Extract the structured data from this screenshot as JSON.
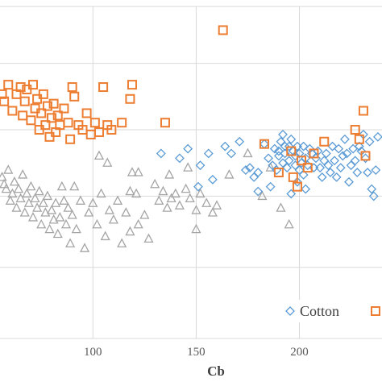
{
  "chart_data": {
    "type": "scatter",
    "xlabel": "Cb",
    "ylabel": "",
    "xlim": [
      55,
      240
    ],
    "ylim": [
      40,
      180
    ],
    "x_ticks": [
      100,
      150,
      200
    ],
    "y_grid": [
      40,
      70,
      100,
      128,
      156,
      180
    ],
    "grid": "horizontal and vertical",
    "legend_placement": "bottom-right",
    "colors": {
      "cotton": "#5b9bd5",
      "orange": "#ed7d31",
      "gray": "#a5a5a5"
    },
    "series": [
      {
        "name": "Cotton",
        "marker": "diamond",
        "color": "#5b9bd5",
        "points": [
          [
            142,
            116
          ],
          [
            146,
            120
          ],
          [
            152,
            113
          ],
          [
            156,
            118
          ],
          [
            158,
            107
          ],
          [
            164,
            121
          ],
          [
            167,
            118
          ],
          [
            174,
            111
          ],
          [
            176,
            112
          ],
          [
            178,
            108
          ],
          [
            180,
            110
          ],
          [
            183,
            122
          ],
          [
            185,
            116
          ],
          [
            187,
            113
          ],
          [
            188,
            120
          ],
          [
            189,
            111
          ],
          [
            190,
            119
          ],
          [
            190,
            117
          ],
          [
            191,
            123
          ],
          [
            192,
            114
          ],
          [
            192,
            126
          ],
          [
            193,
            121
          ],
          [
            193,
            118
          ],
          [
            194,
            112
          ],
          [
            195,
            121
          ],
          [
            195,
            115
          ],
          [
            196,
            124
          ],
          [
            197,
            119
          ],
          [
            198,
            117
          ],
          [
            198,
            113
          ],
          [
            199,
            121
          ],
          [
            200,
            111
          ],
          [
            200,
            118
          ],
          [
            201,
            114
          ],
          [
            202,
            121
          ],
          [
            202,
            109
          ],
          [
            203,
            116
          ],
          [
            204,
            113
          ],
          [
            205,
            120
          ],
          [
            206,
            118
          ],
          [
            207,
            112
          ],
          [
            208,
            116
          ],
          [
            209,
            119
          ],
          [
            210,
            112
          ],
          [
            211,
            108
          ],
          [
            212,
            115
          ],
          [
            213,
            118
          ],
          [
            214,
            113
          ],
          [
            215,
            110
          ],
          [
            216,
            121
          ],
          [
            217,
            115
          ],
          [
            218,
            108
          ],
          [
            219,
            120
          ],
          [
            220,
            112
          ],
          [
            221,
            117
          ],
          [
            222,
            124
          ],
          [
            223,
            118
          ],
          [
            224,
            106
          ],
          [
            225,
            113
          ],
          [
            226,
            120
          ],
          [
            227,
            115
          ],
          [
            228,
            110
          ],
          [
            229,
            121
          ],
          [
            230,
            119
          ],
          [
            231,
            126
          ],
          [
            232,
            116
          ],
          [
            233,
            110
          ],
          [
            234,
            123
          ],
          [
            235,
            103
          ],
          [
            236,
            100
          ],
          [
            237,
            111
          ],
          [
            238,
            125
          ],
          [
            199,
            106
          ],
          [
            196,
            101
          ],
          [
            203,
            103
          ],
          [
            180,
            102
          ],
          [
            151,
            104
          ],
          [
            133,
            118
          ],
          [
            171,
            123
          ],
          [
            186,
            104
          ]
        ]
      },
      {
        "name": "",
        "marker": "square",
        "color": "#ed7d31",
        "points": [
          [
            56,
            143
          ],
          [
            57,
            140
          ],
          [
            59,
            147
          ],
          [
            61,
            136
          ],
          [
            63,
            143
          ],
          [
            65,
            146
          ],
          [
            66,
            134
          ],
          [
            67,
            140
          ],
          [
            68,
            145
          ],
          [
            70,
            132
          ],
          [
            71,
            147
          ],
          [
            72,
            137
          ],
          [
            73,
            141
          ],
          [
            74,
            128
          ],
          [
            75,
            135
          ],
          [
            76,
            143
          ],
          [
            77,
            130
          ],
          [
            78,
            138
          ],
          [
            79,
            125
          ],
          [
            80,
            133
          ],
          [
            81,
            139
          ],
          [
            82,
            127
          ],
          [
            83,
            134
          ],
          [
            84,
            130
          ],
          [
            86,
            137
          ],
          [
            88,
            131
          ],
          [
            89,
            124
          ],
          [
            90,
            146
          ],
          [
            91,
            142
          ],
          [
            93,
            130
          ],
          [
            95,
            128
          ],
          [
            97,
            135
          ],
          [
            99,
            126
          ],
          [
            101,
            131
          ],
          [
            103,
            127
          ],
          [
            105,
            146
          ],
          [
            107,
            130
          ],
          [
            109,
            128
          ],
          [
            114,
            131
          ],
          [
            118,
            141
          ],
          [
            119,
            147
          ],
          [
            135,
            131
          ],
          [
            163,
            170
          ],
          [
            183,
            122
          ],
          [
            196,
            119
          ],
          [
            190,
            110
          ],
          [
            197,
            108
          ],
          [
            199,
            104
          ],
          [
            201,
            115
          ],
          [
            204,
            112
          ],
          [
            207,
            118
          ],
          [
            212,
            123
          ],
          [
            227,
            128
          ],
          [
            229,
            124
          ],
          [
            232,
            117
          ],
          [
            231,
            136
          ]
        ]
      },
      {
        "name": "",
        "marker": "triangle",
        "color": "#a5a5a5",
        "points": [
          [
            56,
            108
          ],
          [
            57,
            105
          ],
          [
            58,
            103
          ],
          [
            59,
            111
          ],
          [
            60,
            98
          ],
          [
            61,
            101
          ],
          [
            62,
            106
          ],
          [
            63,
            95
          ],
          [
            64,
            103
          ],
          [
            65,
            99
          ],
          [
            66,
            109
          ],
          [
            67,
            93
          ],
          [
            68,
            101
          ],
          [
            69,
            97
          ],
          [
            70,
            104
          ],
          [
            71,
            91
          ],
          [
            72,
            99
          ],
          [
            73,
            95
          ],
          [
            74,
            102
          ],
          [
            75,
            88
          ],
          [
            76,
            97
          ],
          [
            77,
            93
          ],
          [
            78,
            100
          ],
          [
            79,
            86
          ],
          [
            80,
            94
          ],
          [
            81,
            90
          ],
          [
            82,
            97
          ],
          [
            83,
            84
          ],
          [
            84,
            91
          ],
          [
            85,
            104
          ],
          [
            86,
            98
          ],
          [
            87,
            88
          ],
          [
            88,
            95
          ],
          [
            89,
            80
          ],
          [
            90,
            92
          ],
          [
            91,
            104
          ],
          [
            92,
            86
          ],
          [
            94,
            98
          ],
          [
            96,
            78
          ],
          [
            98,
            93
          ],
          [
            100,
            97
          ],
          [
            102,
            88
          ],
          [
            104,
            101
          ],
          [
            106,
            83
          ],
          [
            108,
            94
          ],
          [
            110,
            90
          ],
          [
            112,
            98
          ],
          [
            114,
            80
          ],
          [
            116,
            93
          ],
          [
            118,
            85
          ],
          [
            119,
            110
          ],
          [
            121,
            101
          ],
          [
            122,
            88
          ],
          [
            125,
            92
          ],
          [
            127,
            82
          ],
          [
            130,
            105
          ],
          [
            132,
            98
          ],
          [
            134,
            102
          ],
          [
            136,
            95
          ],
          [
            138,
            99
          ],
          [
            140,
            101
          ],
          [
            142,
            96
          ],
          [
            145,
            103
          ],
          [
            147,
            99
          ],
          [
            150,
            94
          ],
          [
            152,
            101
          ],
          [
            155,
            97
          ],
          [
            158,
            93
          ],
          [
            160,
            96
          ],
          [
            146,
            112
          ],
          [
            166,
            109
          ],
          [
            103,
            117
          ],
          [
            107,
            114
          ],
          [
            118,
            102
          ],
          [
            122,
            110
          ],
          [
            150,
            86
          ],
          [
            137,
            109
          ],
          [
            175,
            118
          ],
          [
            182,
            100
          ],
          [
            191,
            95
          ],
          [
            195,
            88
          ],
          [
            186,
            112
          ]
        ]
      }
    ],
    "legend": [
      {
        "label": "Cotton",
        "marker": "diamond"
      },
      {
        "label": "",
        "marker": "square"
      }
    ]
  }
}
